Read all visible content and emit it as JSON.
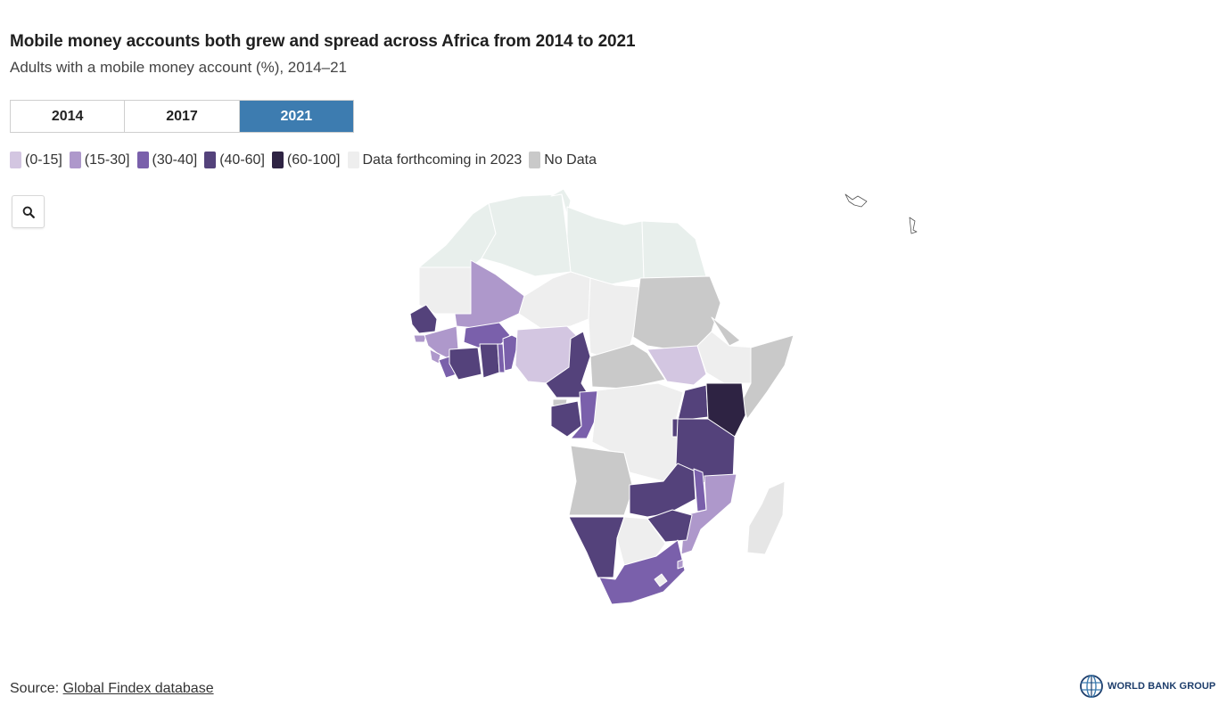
{
  "title": "Mobile money accounts both grew and spread across Africa from 2014 to 2021",
  "subtitle": "Adults with a mobile money account (%), 2014–21",
  "tabs": [
    {
      "label": "2014",
      "active": false
    },
    {
      "label": "2017",
      "active": false
    },
    {
      "label": "2021",
      "active": true
    }
  ],
  "legend": [
    {
      "label": "(0-15]",
      "color": "#d3c6e1"
    },
    {
      "label": "(15-30]",
      "color": "#ae98cb"
    },
    {
      "label": "(30-40]",
      "color": "#7a60ab"
    },
    {
      "label": "(40-60]",
      "color": "#54427b"
    },
    {
      "label": "(60-100]",
      "color": "#2e2343"
    },
    {
      "label": "Data forthcoming in 2023",
      "color": "#eeeeee"
    },
    {
      "label": "No Data",
      "color": "#c9c9c9"
    }
  ],
  "icons": {
    "zoom": "search-icon",
    "logo": "world-bank-globe-icon"
  },
  "source": {
    "prefix": "Source: ",
    "link_text": "Global Findex database"
  },
  "logo_text": "WORLD BANK GROUP"
}
